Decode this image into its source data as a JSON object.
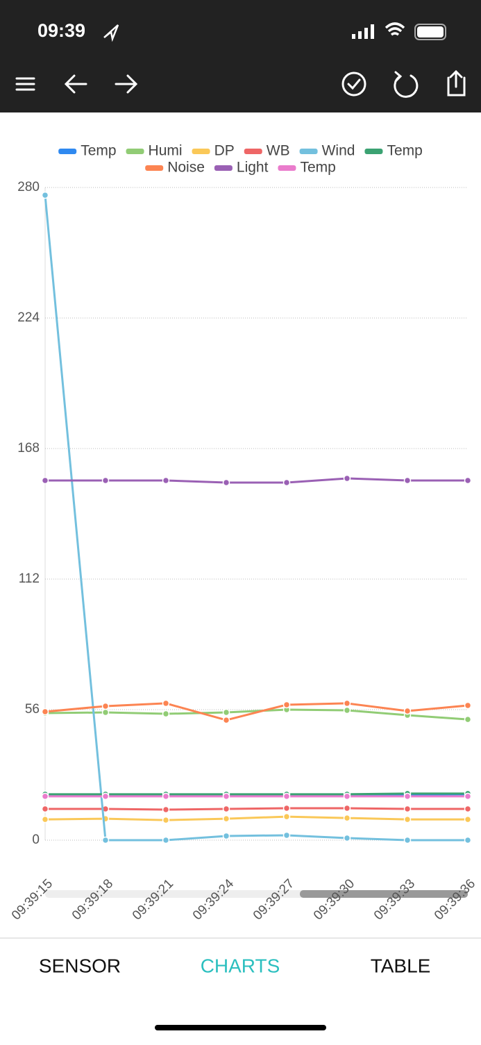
{
  "status_bar": {
    "time": "09:39"
  },
  "tabs": [
    "SENSOR",
    "CHARTS",
    "TABLE"
  ],
  "chart_data": {
    "type": "line",
    "categories": [
      "09:39:15",
      "09:39:18",
      "09:39:21",
      "09:39:24",
      "09:39:27",
      "09:39:30",
      "09:39:33",
      "09:39:36"
    ],
    "ylim": [
      0,
      280
    ],
    "yticks": [
      0,
      56,
      112,
      168,
      224,
      280
    ],
    "grid": true,
    "series": [
      {
        "name": "Temp",
        "color": "#2f89f0",
        "values": [
          19.5,
          19.5,
          19.5,
          19.6,
          19.6,
          19.6,
          19.6,
          19.7
        ]
      },
      {
        "name": "Humi",
        "color": "#91cc75",
        "values": [
          54.5,
          54.8,
          54.2,
          54.8,
          56.0,
          55.7,
          53.6,
          51.8
        ]
      },
      {
        "name": "DP",
        "color": "#fac858",
        "values": [
          8.9,
          9.2,
          8.6,
          9.2,
          10.1,
          9.5,
          8.9,
          8.9
        ]
      },
      {
        "name": "WB",
        "color": "#ee6666",
        "values": [
          13.4,
          13.4,
          13.1,
          13.4,
          13.7,
          13.7,
          13.4,
          13.4
        ]
      },
      {
        "name": "Wind",
        "color": "#73c0de",
        "values": [
          276.7,
          0,
          0,
          1.8,
          2.1,
          0.9,
          0,
          0
        ]
      },
      {
        "name": "Temp",
        "color": "#3ba272",
        "values": [
          19.7,
          19.7,
          19.7,
          19.7,
          19.7,
          19.7,
          20.0,
          20.0
        ]
      },
      {
        "name": "Noise",
        "color": "#fc8452",
        "values": [
          55.1,
          57.5,
          58.7,
          51.5,
          58.1,
          58.7,
          55.4,
          57.8
        ]
      },
      {
        "name": "Light",
        "color": "#9a60b4",
        "values": [
          154.3,
          154.3,
          154.3,
          153.4,
          153.4,
          155.2,
          154.3,
          154.3
        ]
      },
      {
        "name": "Temp",
        "color": "#ea7ccc",
        "values": [
          18.8,
          18.8,
          18.8,
          18.8,
          18.8,
          18.8,
          18.8,
          18.8
        ]
      }
    ]
  }
}
